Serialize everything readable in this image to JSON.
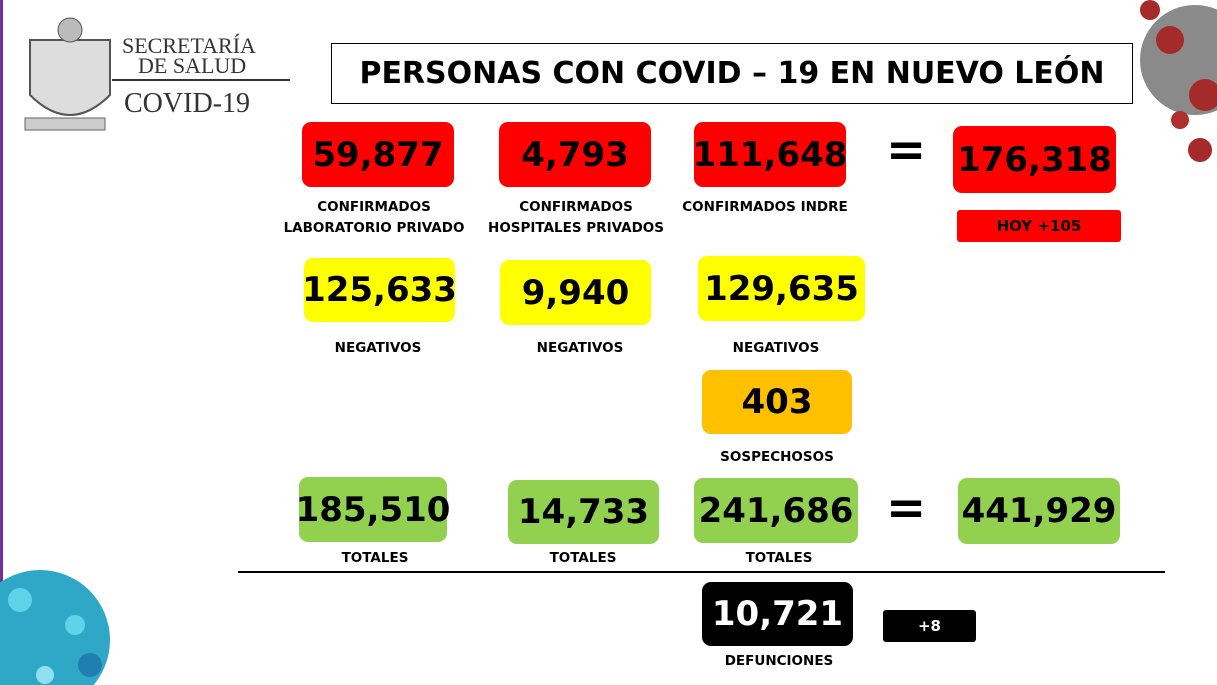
{
  "header": {
    "agency": [
      "SECRETARÍA",
      "DE SALUD"
    ],
    "program": "COVID-19",
    "title": "PERSONAS CON COVID – 19 EN NUEVO LEÓN"
  },
  "confirmed": {
    "values": [
      "59,877",
      "4,793",
      "111,648"
    ],
    "labels": [
      [
        "CONFIRMADOS",
        "LABORATORIO PRIVADO"
      ],
      [
        "CONFIRMADOS",
        "HOSPITALES PRIVADOS"
      ],
      [
        "CONFIRMADOS INDRE"
      ]
    ],
    "total": "176,318",
    "today": "HOY +105"
  },
  "negatives": {
    "values": [
      "125,633",
      "9,940",
      "129,635"
    ],
    "labels": [
      "NEGATIVOS",
      "NEGATIVOS",
      "NEGATIVOS"
    ]
  },
  "suspects": {
    "value": "403",
    "label": "SOSPECHOSOS"
  },
  "totals": {
    "values": [
      "185,510",
      "14,733",
      "241,686"
    ],
    "labels": [
      "TOTALES",
      "TOTALES",
      "TOTALES"
    ],
    "total": "441,929"
  },
  "deaths": {
    "value": "10,721",
    "change": "+8",
    "label": "DEFUNCIONES"
  },
  "operator": "="
}
